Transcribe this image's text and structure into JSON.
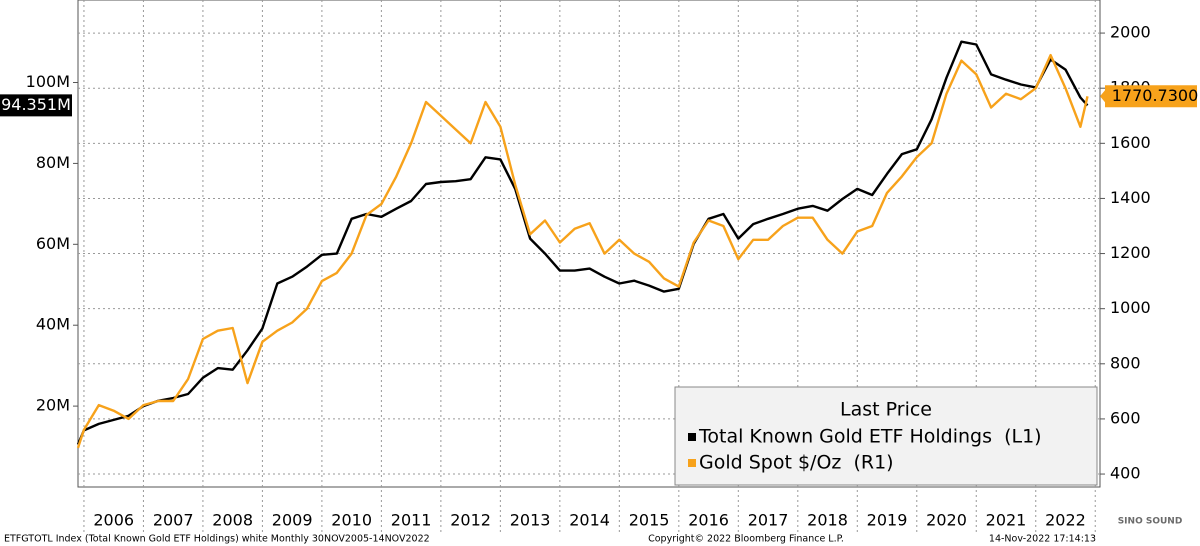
{
  "chart_data": {
    "type": "line",
    "legend_title": "Last Price",
    "xlim": [
      2005.9,
      2023.08
    ],
    "xticks": [
      {
        "value": 2006.5,
        "label": "2006"
      },
      {
        "value": 2007.5,
        "label": "2007"
      },
      {
        "value": 2008.5,
        "label": "2008"
      },
      {
        "value": 2009.5,
        "label": "2009"
      },
      {
        "value": 2010.5,
        "label": "2010"
      },
      {
        "value": 2011.5,
        "label": "2011"
      },
      {
        "value": 2012.5,
        "label": "2012"
      },
      {
        "value": 2013.5,
        "label": "2013"
      },
      {
        "value": 2014.5,
        "label": "2014"
      },
      {
        "value": 2015.5,
        "label": "2015"
      },
      {
        "value": 2016.5,
        "label": "2016"
      },
      {
        "value": 2017.5,
        "label": "2017"
      },
      {
        "value": 2018.5,
        "label": "2018"
      },
      {
        "value": 2019.5,
        "label": "2019"
      },
      {
        "value": 2020.5,
        "label": "2020"
      },
      {
        "value": 2021.5,
        "label": "2021"
      },
      {
        "value": 2022.5,
        "label": "2022"
      }
    ],
    "ylim": [
      0,
      120.4
    ],
    "yticks": [
      {
        "value": 20,
        "label": "20M"
      },
      {
        "value": 40,
        "label": "40M"
      },
      {
        "value": 60,
        "label": "60M"
      },
      {
        "value": 80,
        "label": "80M"
      },
      {
        "value": 100,
        "label": "100M"
      }
    ],
    "y2lim": [
      353,
      2120
    ],
    "y2ticks": [
      400,
      600,
      800,
      1000,
      1200,
      1400,
      1600,
      1800,
      2000
    ],
    "grid": true,
    "x": [
      2005.9,
      2006.0,
      2006.25,
      2006.5,
      2006.75,
      2007.0,
      2007.25,
      2007.5,
      2007.75,
      2008.0,
      2008.25,
      2008.5,
      2008.75,
      2009.0,
      2009.25,
      2009.5,
      2009.75,
      2010.0,
      2010.25,
      2010.5,
      2010.75,
      2011.0,
      2011.25,
      2011.5,
      2011.75,
      2012.0,
      2012.25,
      2012.5,
      2012.75,
      2013.0,
      2013.25,
      2013.5,
      2013.75,
      2014.0,
      2014.25,
      2014.5,
      2014.75,
      2015.0,
      2015.25,
      2015.5,
      2015.75,
      2016.0,
      2016.25,
      2016.5,
      2016.75,
      2017.0,
      2017.25,
      2017.5,
      2017.75,
      2018.0,
      2018.25,
      2018.5,
      2018.75,
      2019.0,
      2019.25,
      2019.5,
      2019.75,
      2020.0,
      2020.25,
      2020.5,
      2020.75,
      2021.0,
      2021.25,
      2021.5,
      2021.75,
      2022.0,
      2022.25,
      2022.5,
      2022.75,
      2022.87
    ],
    "series": [
      {
        "name": "Total Known Gold ETF Holdings  (L1)",
        "color": "#000000",
        "last_label": "94.351M",
        "values": [
          10.5,
          14,
          15.6,
          16.6,
          17.6,
          20,
          21.3,
          22,
          23,
          27,
          29.4,
          29,
          33.8,
          39.2,
          50.3,
          52,
          54.5,
          57.4,
          57.7,
          66.3,
          67.5,
          66.8,
          68.8,
          70.7,
          74.9,
          75.4,
          75.6,
          76.1,
          81.5,
          81,
          73.7,
          61.4,
          57.7,
          53.5,
          53.5,
          54,
          52,
          50.3,
          51,
          49.8,
          48.3,
          49,
          60.1,
          66.3,
          67.5,
          61.4,
          65,
          66.3,
          67.5,
          68.8,
          69.5,
          68.3,
          71.2,
          73.7,
          72.2,
          77.4,
          82.3,
          83.5,
          90.9,
          101.2,
          110.1,
          109.4,
          102,
          100.7,
          99.5,
          98.8,
          105.7,
          103.2,
          96.3,
          94.351
        ]
      },
      {
        "name": "Gold Spot $/Oz  (R1)",
        "color": "#f7a21b",
        "axis": "y2",
        "last_label": "1770.7300",
        "values": [
          495,
          560,
          650,
          630,
          600,
          650,
          665,
          665,
          745,
          890,
          920,
          930,
          730,
          880,
          920,
          950,
          1000,
          1100,
          1130,
          1200,
          1340,
          1380,
          1480,
          1600,
          1750,
          1700,
          1650,
          1600,
          1750,
          1660,
          1450,
          1270,
          1320,
          1240,
          1290,
          1310,
          1200,
          1250,
          1200,
          1170,
          1110,
          1080,
          1240,
          1320,
          1300,
          1180,
          1250,
          1250,
          1300,
          1330,
          1330,
          1250,
          1200,
          1280,
          1300,
          1420,
          1480,
          1550,
          1600,
          1780,
          1900,
          1850,
          1730,
          1780,
          1760,
          1800,
          1920,
          1800,
          1660,
          1770.73
        ]
      }
    ],
    "footer_left": "ETFGTOTL Index (Total Known Gold ETF Holdings) white  Monthly 30NOV2005-14NOV2022",
    "footer_center": "Copyright© 2022 Bloomberg Finance L.P.",
    "footer_right": "14-Nov-2022 17:14:13",
    "watermark": "SINO SOUND"
  }
}
